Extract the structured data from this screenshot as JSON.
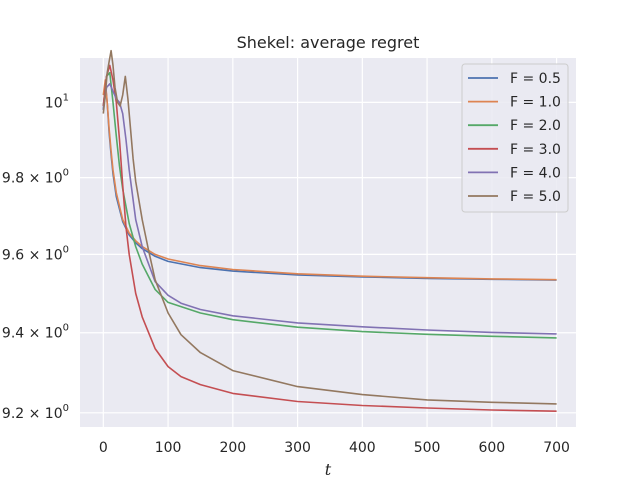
{
  "chart_data": {
    "type": "line",
    "title": "Shekel: average regret",
    "xlabel": "t",
    "ylabel": "",
    "xlim": [
      -36,
      730
    ],
    "ylim": [
      9.165,
      10.12
    ],
    "yscale": "log",
    "grid": true,
    "legend_position": "top-right",
    "x_ticks": [
      0,
      100,
      200,
      300,
      400,
      500,
      600,
      700
    ],
    "x_tick_labels": [
      "0",
      "100",
      "200",
      "300",
      "400",
      "500",
      "600",
      "700"
    ],
    "y_ticks": [
      9.2,
      9.4,
      9.6,
      9.8,
      10
    ],
    "y_tick_labels": [
      {
        "base": "9.2 × 10",
        "exp": "0"
      },
      {
        "base": "9.4 × 10",
        "exp": "0"
      },
      {
        "base": "9.6 × 10",
        "exp": "0"
      },
      {
        "base": "9.8 × 10",
        "exp": "0"
      },
      {
        "base": "10",
        "exp": "1"
      }
    ],
    "series": [
      {
        "name": "F = 0.5",
        "color": "#4c72b0",
        "x": [
          0,
          3,
          6,
          9,
          12,
          15,
          20,
          30,
          40,
          50,
          60,
          80,
          100,
          150,
          200,
          300,
          400,
          500,
          600,
          700
        ],
        "y": [
          9.98,
          10.05,
          10.0,
          9.92,
          9.86,
          9.81,
          9.75,
          9.685,
          9.65,
          9.63,
          9.615,
          9.595,
          9.582,
          9.566,
          9.557,
          9.547,
          9.542,
          9.538,
          9.536,
          9.534
        ]
      },
      {
        "name": "F = 1.0",
        "color": "#dd8452",
        "x": [
          0,
          3,
          6,
          9,
          12,
          15,
          20,
          30,
          40,
          50,
          60,
          80,
          100,
          150,
          200,
          300,
          400,
          500,
          600,
          700
        ],
        "y": [
          10.02,
          10.06,
          10.0,
          9.93,
          9.87,
          9.82,
          9.76,
          9.69,
          9.655,
          9.635,
          9.62,
          9.6,
          9.588,
          9.571,
          9.561,
          9.55,
          9.544,
          9.54,
          9.537,
          9.535
        ]
      },
      {
        "name": "F = 2.0",
        "color": "#55a868",
        "x": [
          0,
          5,
          10,
          15,
          20,
          25,
          30,
          40,
          50,
          60,
          80,
          100,
          150,
          200,
          300,
          400,
          500,
          600,
          700
        ],
        "y": [
          9.99,
          10.07,
          10.08,
          10.0,
          9.91,
          9.83,
          9.77,
          9.68,
          9.62,
          9.575,
          9.51,
          9.477,
          9.45,
          9.433,
          9.414,
          9.403,
          9.396,
          9.391,
          9.387
        ]
      },
      {
        "name": "F = 3.0",
        "color": "#c44e52",
        "x": [
          0,
          5,
          10,
          15,
          20,
          25,
          30,
          35,
          40,
          50,
          60,
          80,
          100,
          120,
          150,
          200,
          300,
          400,
          500,
          600,
          700
        ],
        "y": [
          9.99,
          10.07,
          10.1,
          10.06,
          10.0,
          9.9,
          9.78,
          9.67,
          9.6,
          9.5,
          9.44,
          9.36,
          9.315,
          9.29,
          9.27,
          9.248,
          9.228,
          9.218,
          9.212,
          9.207,
          9.204
        ]
      },
      {
        "name": "F = 4.0",
        "color": "#8172b3",
        "x": [
          0,
          5,
          10,
          15,
          20,
          25,
          30,
          35,
          40,
          50,
          60,
          80,
          100,
          120,
          150,
          200,
          300,
          400,
          500,
          600,
          700
        ],
        "y": [
          9.98,
          10.04,
          10.05,
          10.03,
          10.01,
          10.0,
          9.97,
          9.9,
          9.82,
          9.69,
          9.62,
          9.53,
          9.495,
          9.475,
          9.459,
          9.443,
          9.425,
          9.415,
          9.407,
          9.401,
          9.397
        ]
      },
      {
        "name": "F = 5.0",
        "color": "#937860",
        "x": [
          0,
          3,
          6,
          9,
          12,
          15,
          18,
          22,
          26,
          30,
          34,
          38,
          42,
          46,
          50,
          60,
          70,
          80,
          100,
          120,
          150,
          200,
          300,
          400,
          500,
          600,
          700
        ],
        "y": [
          9.97,
          10.02,
          10.08,
          10.11,
          10.14,
          10.1,
          10.04,
          10.0,
          9.99,
          10.02,
          10.07,
          10.01,
          9.93,
          9.85,
          9.79,
          9.69,
          9.61,
          9.535,
          9.45,
          9.395,
          9.35,
          9.305,
          9.265,
          9.245,
          9.232,
          9.226,
          9.222
        ]
      }
    ]
  }
}
